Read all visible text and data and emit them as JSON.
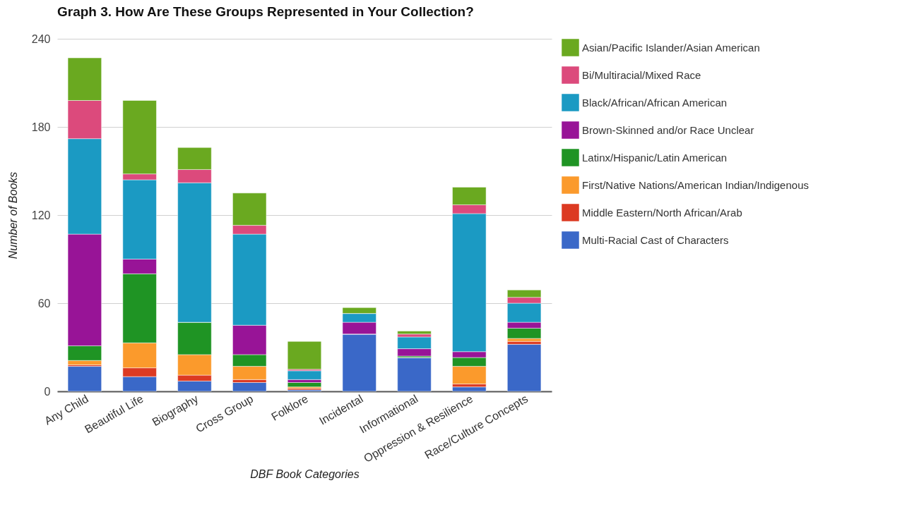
{
  "chart_data": {
    "type": "bar",
    "stacked": true,
    "title": "Graph 3. How Are These Groups Represented in Your Collection?",
    "xlabel": "DBF Book Categories",
    "ylabel": "Number of Books",
    "categories": [
      "Any Child",
      "Beautiful Life",
      "Biography",
      "Cross Group",
      "Folklore",
      "Incidental",
      "Informational",
      "Oppression & Resilience",
      "Race/Culture Concepts"
    ],
    "series": [
      {
        "name": "Multi-Racial Cast of Characters",
        "color": "#3a68c8",
        "values": [
          17,
          10,
          7,
          6,
          1,
          39,
          23,
          3,
          32
        ]
      },
      {
        "name": "Middle Eastern/North African/Arab",
        "color": "#dc3a22",
        "values": [
          1,
          6,
          4,
          2,
          1,
          0,
          0,
          2,
          2
        ]
      },
      {
        "name": "First/Native Nations/American Indian/Indigenous",
        "color": "#fb9a2c",
        "values": [
          3,
          17,
          14,
          9,
          1,
          0,
          0,
          12,
          2
        ]
      },
      {
        "name": "Latinx/Hispanic/Latin American",
        "color": "#1f9424",
        "values": [
          10,
          47,
          22,
          8,
          3,
          0,
          1,
          6,
          7
        ]
      },
      {
        "name": "Brown-Skinned and/or Race Unclear",
        "color": "#981497",
        "values": [
          76,
          10,
          0,
          20,
          2,
          8,
          5,
          4,
          4
        ]
      },
      {
        "name": "Black/African/African American",
        "color": "#1b9ac3",
        "values": [
          65,
          54,
          95,
          62,
          6,
          6,
          8,
          94,
          13
        ]
      },
      {
        "name": "Bi/Multiracial/Mixed Race",
        "color": "#dc4a7c",
        "values": [
          26,
          4,
          9,
          6,
          1,
          0,
          2,
          6,
          4
        ]
      },
      {
        "name": "Asian/Pacific Islander/Asian American",
        "color": "#6aa920",
        "values": [
          29,
          50,
          15,
          22,
          19,
          4,
          2,
          12,
          5
        ]
      }
    ],
    "ylim": [
      0,
      240
    ],
    "yticks": [
      0,
      60,
      120,
      180,
      240
    ],
    "grid": "y",
    "legend": "right"
  }
}
